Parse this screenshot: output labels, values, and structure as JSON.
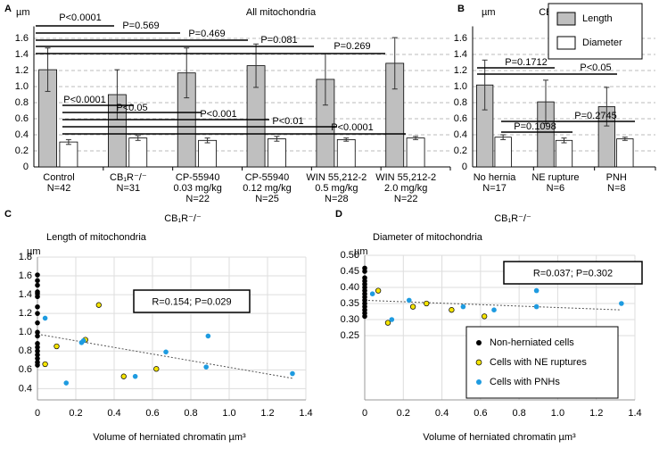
{
  "chart_data": [
    {
      "type": "bar",
      "label": "A",
      "title": "All mitochondria",
      "ylabel": "µm",
      "categories": [
        [
          "Control",
          "N=42"
        ],
        [
          "CB₁R⁻/⁻",
          "N=31"
        ],
        [
          "CP-55940",
          "0.03 mg/kg",
          "N=22"
        ],
        [
          "CP-55940",
          "0.12 mg/kg",
          "N=25"
        ],
        [
          "WIN 55,212-2",
          "0.5 mg/kg",
          "N=28"
        ],
        [
          "WIN 55,212-2",
          "2.0 mg/kg",
          "N=22"
        ]
      ],
      "series": [
        {
          "color": "#bfbfbf",
          "values": [
            1.21,
            0.9,
            1.17,
            1.26,
            1.09,
            1.29
          ],
          "errors": [
            0.27,
            0.31,
            0.31,
            0.27,
            0.32,
            0.32
          ]
        },
        {
          "color": "#ffffff",
          "values": [
            0.31,
            0.36,
            0.33,
            0.35,
            0.34,
            0.36
          ],
          "errors": [
            0.03,
            0.03,
            0.03,
            0.03,
            0.02,
            0.02
          ]
        }
      ],
      "ylim": [
        0,
        1.75
      ],
      "yticks": [
        0,
        0.2,
        0.4,
        0.6,
        0.8,
        {
          "value": 1,
          "label": "1.0"
        },
        1.2,
        1.4,
        1.6
      ],
      "grid": true,
      "annotations": [
        "P<0.0001",
        "P=0.569",
        "P=0.469",
        "P=0.081",
        "P=0.269",
        "P<0.0001",
        "P<0.05",
        "P<0.001",
        "P<0.01",
        "P<0.0001"
      ]
    },
    {
      "type": "bar",
      "label": "B",
      "title": "CB₁R⁻/⁻",
      "ylabel": "µm",
      "categories": [
        [
          "No hernia",
          "N=17"
        ],
        [
          "NE rupture",
          "N=6"
        ],
        [
          "PNH",
          "N=8"
        ]
      ],
      "series": [
        {
          "name": "Length",
          "color": "#bfbfbf",
          "values": [
            1.02,
            0.81,
            0.75
          ],
          "errors": [
            0.31,
            0.27,
            0.24
          ]
        },
        {
          "name": "Diameter",
          "color": "#ffffff",
          "values": [
            0.37,
            0.33,
            0.35
          ],
          "errors": [
            0.03,
            0.03,
            0.02
          ]
        }
      ],
      "ylim": [
        0,
        1.75
      ],
      "yticks": [
        0,
        0.2,
        0.4,
        0.6,
        0.8,
        {
          "value": 1,
          "label": "1.0"
        },
        1.2,
        1.4,
        1.6
      ],
      "grid": true,
      "legend": "top-right",
      "annotations": [
        "P=0.1712",
        "P<0.05",
        "P=0.1098",
        "P=0.2745"
      ]
    },
    {
      "type": "scatter",
      "label": "C",
      "title": "CB₁R⁻/⁻",
      "subtitle": "Length of mitochondria",
      "ylabel": "µm",
      "xlabel": "Volume of herniated chromatin  µm³",
      "series": [
        {
          "color": "#000000",
          "x": [
            0,
            0,
            0,
            0,
            0,
            0,
            0,
            0,
            0,
            0,
            0,
            0,
            0,
            0,
            0,
            0,
            0,
            0
          ],
          "y": [
            1.61,
            1.55,
            1.5,
            1.43,
            1.41,
            1.38,
            1.27,
            1.2,
            1.1,
            1.0,
            0.96,
            0.88,
            0.84,
            0.8,
            0.76,
            0.72,
            0.68,
            0.65
          ]
        },
        {
          "color": "#f5e400",
          "x": [
            0.04,
            0.1,
            0.25,
            0.32,
            0.45,
            0.62
          ],
          "y": [
            0.66,
            0.85,
            0.92,
            1.29,
            0.53,
            0.61
          ]
        },
        {
          "color": "#1e9be0",
          "x": [
            0.04,
            0.15,
            0.23,
            0.24,
            0.51,
            0.67,
            0.88,
            0.89,
            1.33
          ],
          "y": [
            1.15,
            0.46,
            0.89,
            0.91,
            0.53,
            0.79,
            0.63,
            0.96,
            0.56
          ]
        }
      ],
      "trendline": {
        "x": [
          0,
          1.33
        ],
        "y": [
          0.98,
          0.51
        ]
      },
      "annotation": "R=0.154; P=0.029",
      "xlim": [
        0,
        1.4
      ],
      "xticks": [
        0,
        0.2,
        0.4,
        0.6,
        0.8,
        {
          "value": 1,
          "label": "1.0"
        },
        1.2,
        1.4
      ],
      "ylim": [
        0.28,
        1.8
      ],
      "yticks": [
        0.4,
        0.6,
        0.8,
        {
          "value": 1,
          "label": "1.0"
        },
        1.2,
        1.4,
        1.6,
        1.8
      ],
      "grid": true
    },
    {
      "type": "scatter",
      "label": "D",
      "title": "CB₁R⁻/⁻",
      "subtitle": "Diameter of mitochondria",
      "ylabel": "µm",
      "xlabel": "Volume of herniated chromatin  µm³",
      "series": [
        {
          "name": "Non-herniated cells",
          "color": "#000000",
          "x": [
            0,
            0,
            0,
            0,
            0,
            0,
            0,
            0,
            0,
            0,
            0,
            0,
            0,
            0,
            0
          ],
          "y": [
            0.46,
            0.45,
            0.43,
            0.42,
            0.41,
            0.4,
            0.39,
            0.38,
            0.37,
            0.36,
            0.35,
            0.34,
            0.33,
            0.32,
            0.31
          ]
        },
        {
          "name": "Cells with NE ruptures",
          "color": "#f5e400",
          "x": [
            0.07,
            0.12,
            0.25,
            0.32,
            0.45,
            0.62
          ],
          "y": [
            0.39,
            0.29,
            0.34,
            0.35,
            0.33,
            0.31
          ]
        },
        {
          "name": "Cells with PNHs",
          "color": "#1e9be0",
          "x": [
            0.04,
            0.14,
            0.23,
            0.51,
            0.67,
            0.89,
            0.89,
            1.33
          ],
          "y": [
            0.38,
            0.3,
            0.36,
            0.34,
            0.33,
            0.39,
            0.34,
            0.35
          ]
        }
      ],
      "trendline": {
        "x": [
          0,
          1.33
        ],
        "y": [
          0.36,
          0.33
        ]
      },
      "annotation": "R=0.037; P=0.302",
      "xlim": [
        0,
        1.4
      ],
      "xticks": [
        0,
        0.2,
        0.4,
        0.6,
        0.8,
        {
          "value": 1,
          "label": "1.0"
        },
        1.2,
        1.4
      ],
      "ylim": [
        0.05,
        0.5
      ],
      "yticks": [
        0.25,
        {
          "value": 0.3,
          "label": "0.30"
        },
        0.35,
        {
          "value": 0.4,
          "label": "0.40"
        },
        0.45,
        {
          "value": 0.5,
          "label": "0.50"
        }
      ],
      "grid": true,
      "legend": "lower-right"
    }
  ]
}
